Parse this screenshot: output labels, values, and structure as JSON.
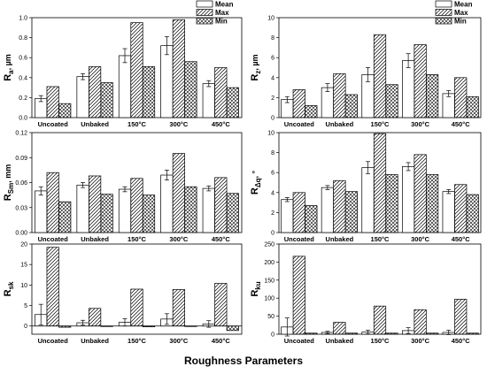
{
  "xlabel": "Roughness Parameters",
  "legend": [
    "Mean",
    "Max",
    "Min"
  ],
  "chart_data": [
    {
      "type": "bar",
      "panel": "Ra",
      "ylabel_main": "R",
      "ylabel_sub": "a",
      "ylabel_unit": ", µm",
      "categories": [
        "Uncoated",
        "Unbaked",
        "150°C",
        "300°C",
        "450°C"
      ],
      "ylim": [
        0,
        1.0
      ],
      "yticks": [
        "0.0",
        "0.2",
        "0.4",
        "0.6",
        "0.8",
        "1.0"
      ],
      "yticks_values": [
        0,
        0.2,
        0.4,
        0.6,
        0.8,
        1.0
      ],
      "legend_position": "top-right",
      "series": [
        {
          "name": "Mean",
          "values": [
            0.19,
            0.41,
            0.62,
            0.72,
            0.34
          ],
          "errors": [
            0.03,
            0.03,
            0.07,
            0.09,
            0.03
          ]
        },
        {
          "name": "Max",
          "values": [
            0.31,
            0.51,
            0.95,
            0.98,
            0.5
          ]
        },
        {
          "name": "Min",
          "values": [
            0.14,
            0.35,
            0.51,
            0.56,
            0.3
          ]
        }
      ]
    },
    {
      "type": "bar",
      "panel": "Rz",
      "ylabel_main": "R",
      "ylabel_sub": "z",
      "ylabel_unit": ", µm",
      "categories": [
        "Uncoated",
        "Unbaked",
        "150°C",
        "300°C",
        "450°C"
      ],
      "ylim": [
        0,
        10
      ],
      "yticks": [
        "0",
        "2",
        "4",
        "6",
        "8",
        "10"
      ],
      "yticks_values": [
        0,
        2,
        4,
        6,
        8,
        10
      ],
      "legend_position": "top-right",
      "series": [
        {
          "name": "Mean",
          "values": [
            1.8,
            3.0,
            4.3,
            5.7,
            2.4
          ],
          "errors": [
            0.3,
            0.4,
            0.7,
            0.7,
            0.3
          ]
        },
        {
          "name": "Max",
          "values": [
            2.8,
            4.4,
            8.3,
            7.3,
            4.0
          ]
        },
        {
          "name": "Min",
          "values": [
            1.2,
            2.3,
            3.3,
            4.3,
            2.1
          ]
        }
      ]
    },
    {
      "type": "bar",
      "panel": "Rsm",
      "ylabel_main": "R",
      "ylabel_sub": "Sm",
      "ylabel_unit": ", mm",
      "categories": [
        "Uncoated",
        "Unbaked",
        "150°C",
        "300°C",
        "450°C"
      ],
      "ylim": [
        0,
        0.12
      ],
      "yticks": [
        "0.00",
        "0.03",
        "0.06",
        "0.09",
        "0.12"
      ],
      "yticks_values": [
        0,
        0.03,
        0.06,
        0.09,
        0.12
      ],
      "series": [
        {
          "name": "Mean",
          "values": [
            0.05,
            0.057,
            0.052,
            0.069,
            0.053
          ],
          "errors": [
            0.005,
            0.003,
            0.003,
            0.006,
            0.003
          ]
        },
        {
          "name": "Max",
          "values": [
            0.072,
            0.068,
            0.065,
            0.095,
            0.066
          ]
        },
        {
          "name": "Min",
          "values": [
            0.037,
            0.046,
            0.045,
            0.055,
            0.047
          ]
        }
      ]
    },
    {
      "type": "bar",
      "panel": "Rdq",
      "ylabel_main": "R",
      "ylabel_sub": "Δq",
      "ylabel_unit": ", °",
      "categories": [
        "Uncoated",
        "Unbaked",
        "150°C",
        "300°C",
        "450°C"
      ],
      "ylim": [
        0,
        10
      ],
      "yticks": [
        "0",
        "2",
        "4",
        "6",
        "8",
        "10"
      ],
      "yticks_values": [
        0,
        2,
        4,
        6,
        8,
        10
      ],
      "series": [
        {
          "name": "Mean",
          "values": [
            3.3,
            4.5,
            6.5,
            6.6,
            4.1
          ],
          "errors": [
            0.2,
            0.2,
            0.6,
            0.4,
            0.2
          ]
        },
        {
          "name": "Max",
          "values": [
            4.0,
            5.2,
            9.9,
            7.8,
            4.8
          ]
        },
        {
          "name": "Min",
          "values": [
            2.7,
            4.1,
            5.8,
            5.8,
            3.8
          ]
        }
      ]
    },
    {
      "type": "bar",
      "panel": "Rsk",
      "ylabel_main": "R",
      "ylabel_sub": "sk",
      "ylabel_unit": "",
      "categories": [
        "Uncoated",
        "Unbaked",
        "150°C",
        "300°C",
        "450°C"
      ],
      "ylim": [
        -2,
        20
      ],
      "yticks": [
        "0",
        "5",
        "10",
        "15",
        "20"
      ],
      "yticks_values": [
        0,
        5,
        10,
        15,
        20
      ],
      "series": [
        {
          "name": "Mean",
          "values": [
            2.8,
            0.8,
            0.9,
            1.7,
            0.5
          ],
          "errors": [
            2.5,
            0.6,
            0.9,
            1.3,
            0.8
          ]
        },
        {
          "name": "Max",
          "values": [
            19.2,
            4.3,
            9.0,
            8.9,
            10.4
          ]
        },
        {
          "name": "Min",
          "values": [
            -0.3,
            -0.1,
            -0.2,
            0.0,
            -1.1
          ]
        }
      ]
    },
    {
      "type": "bar",
      "panel": "Rku",
      "ylabel_main": "R",
      "ylabel_sub": "ku",
      "ylabel_unit": "",
      "categories": [
        "Uncoated",
        "Unbaked",
        "150°C",
        "300°C",
        "450°C"
      ],
      "ylim": [
        0,
        250
      ],
      "yticks": [
        "0",
        "50",
        "100",
        "150",
        "200",
        "250"
      ],
      "yticks_values": [
        0,
        50,
        100,
        150,
        200,
        250
      ],
      "series": [
        {
          "name": "Mean",
          "values": [
            20,
            5,
            6,
            10,
            5
          ],
          "errors": [
            25,
            3,
            5,
            8,
            6
          ]
        },
        {
          "name": "Max",
          "values": [
            216,
            33,
            78,
            68,
            97
          ]
        },
        {
          "name": "Min",
          "values": [
            3,
            3,
            3,
            3,
            3
          ]
        }
      ]
    }
  ]
}
